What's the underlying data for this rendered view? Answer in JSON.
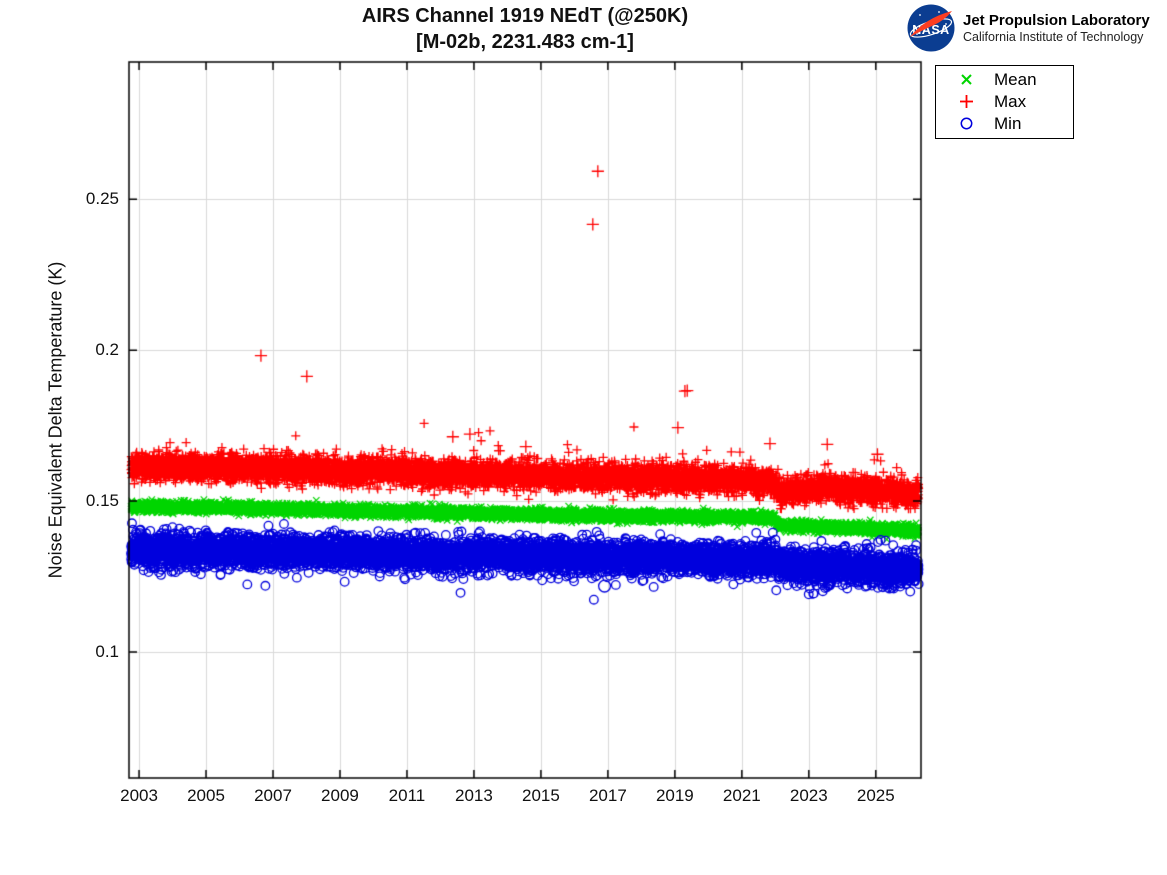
{
  "header": {
    "logo": {
      "nasa_text": "NASA",
      "org": "Jet Propulsion Laboratory",
      "sub": "California Institute of Technology",
      "nasa_blue": "#0b3d91",
      "nasa_red": "#fc3d21"
    }
  },
  "chart_data": {
    "type": "scatter",
    "title_line1": "AIRS Channel 1919 NEdT (@250K)",
    "title_line2": "[M-02b, 2231.483 cm-1]",
    "ylabel": "Noise Equivalent Delta Temperature (K)",
    "xlim": [
      2002.7,
      2026.35
    ],
    "ylim": [
      0.0582,
      0.2955
    ],
    "xticks": [
      2003,
      2005,
      2007,
      2009,
      2011,
      2013,
      2015,
      2017,
      2019,
      2021,
      2023,
      2025
    ],
    "xtick_labels": [
      "2003",
      "2005",
      "2007",
      "2009",
      "2011",
      "2013",
      "2015",
      "2017",
      "2019",
      "2021",
      "2023",
      "2025"
    ],
    "yticks": [
      0.1,
      0.15,
      0.2,
      0.25
    ],
    "ytick_labels": [
      "0.1",
      "0.15",
      "0.2",
      "0.25"
    ],
    "grid": true,
    "grid_color": "#d9d9d9",
    "axis_color": "#000000",
    "x_start": 2002.76,
    "x_end": 2026.28,
    "seed": 1919,
    "legend": {
      "position": "top-right-outside",
      "entries": [
        {
          "label": "Mean",
          "marker": "x",
          "color": "#00d500"
        },
        {
          "label": "Max",
          "marker": "+",
          "color": "#ff0000"
        },
        {
          "label": "Min",
          "marker": "o",
          "color": "#0000dd"
        }
      ]
    },
    "series": [
      {
        "name": "Mean",
        "marker": "x",
        "color": "#00d500",
        "marker_half_px": 3.2,
        "line_width": 1.2,
        "points_per_year": 330,
        "noise_sigma": 0.00085,
        "tail": null,
        "trend": [
          [
            2002.76,
            0.1481
          ],
          [
            2004.5,
            0.148
          ],
          [
            2008,
            0.1472
          ],
          [
            2012,
            0.1462
          ],
          [
            2016,
            0.1452
          ],
          [
            2019,
            0.1449
          ],
          [
            2021.3,
            0.1446
          ],
          [
            2021.95,
            0.1443
          ],
          [
            2022.1,
            0.1419
          ],
          [
            2023.5,
            0.1414
          ],
          [
            2026.28,
            0.1402
          ]
        ],
        "outliers": []
      },
      {
        "name": "Max",
        "marker": "+",
        "color": "#ff0000",
        "marker_half_px": 4.5,
        "line_width": 1.3,
        "points_per_year": 330,
        "noise_sigma": 0.0021,
        "tail": {
          "prob": 0.025,
          "scale": 0.0032,
          "sign": 1
        },
        "trend": [
          [
            2002.76,
            0.1615
          ],
          [
            2006,
            0.1608
          ],
          [
            2010,
            0.1598
          ],
          [
            2014,
            0.1586
          ],
          [
            2018,
            0.1576
          ],
          [
            2021.0,
            0.157
          ],
          [
            2021.9,
            0.1562
          ],
          [
            2022.15,
            0.1528
          ],
          [
            2023.3,
            0.1542
          ],
          [
            2024.3,
            0.1538
          ],
          [
            2025.2,
            0.1528
          ],
          [
            2026.28,
            0.1524
          ]
        ],
        "outliers": [
          [
            2006.64,
            0.1982
          ],
          [
            2008.01,
            0.1913
          ],
          [
            2012.37,
            0.1713
          ],
          [
            2012.88,
            0.1722
          ],
          [
            2014.55,
            0.168
          ],
          [
            2016.55,
            0.2417
          ],
          [
            2016.7,
            0.2593
          ],
          [
            2019.09,
            0.1743
          ],
          [
            2019.3,
            0.1864
          ],
          [
            2019.37,
            0.1866
          ],
          [
            2021.84,
            0.169
          ],
          [
            2023.55,
            0.1688
          ],
          [
            2025.05,
            0.1655
          ]
        ]
      },
      {
        "name": "Min",
        "marker": "o",
        "color": "#0000dd",
        "marker_half_px": 4.3,
        "line_width": 1.3,
        "points_per_year": 330,
        "noise_sigma": 0.0026,
        "tail": {
          "prob": 0.02,
          "scale": 0.0022,
          "sign": -1
        },
        "trend": [
          [
            2002.76,
            0.1338
          ],
          [
            2006,
            0.1333
          ],
          [
            2010,
            0.1327
          ],
          [
            2014,
            0.132
          ],
          [
            2018,
            0.1312
          ],
          [
            2021.9,
            0.1303
          ],
          [
            2022.15,
            0.1288
          ],
          [
            2024,
            0.1281
          ],
          [
            2026.28,
            0.1272
          ]
        ],
        "outliers": [
          [
            2016.9,
            0.1218
          ]
        ]
      }
    ]
  }
}
